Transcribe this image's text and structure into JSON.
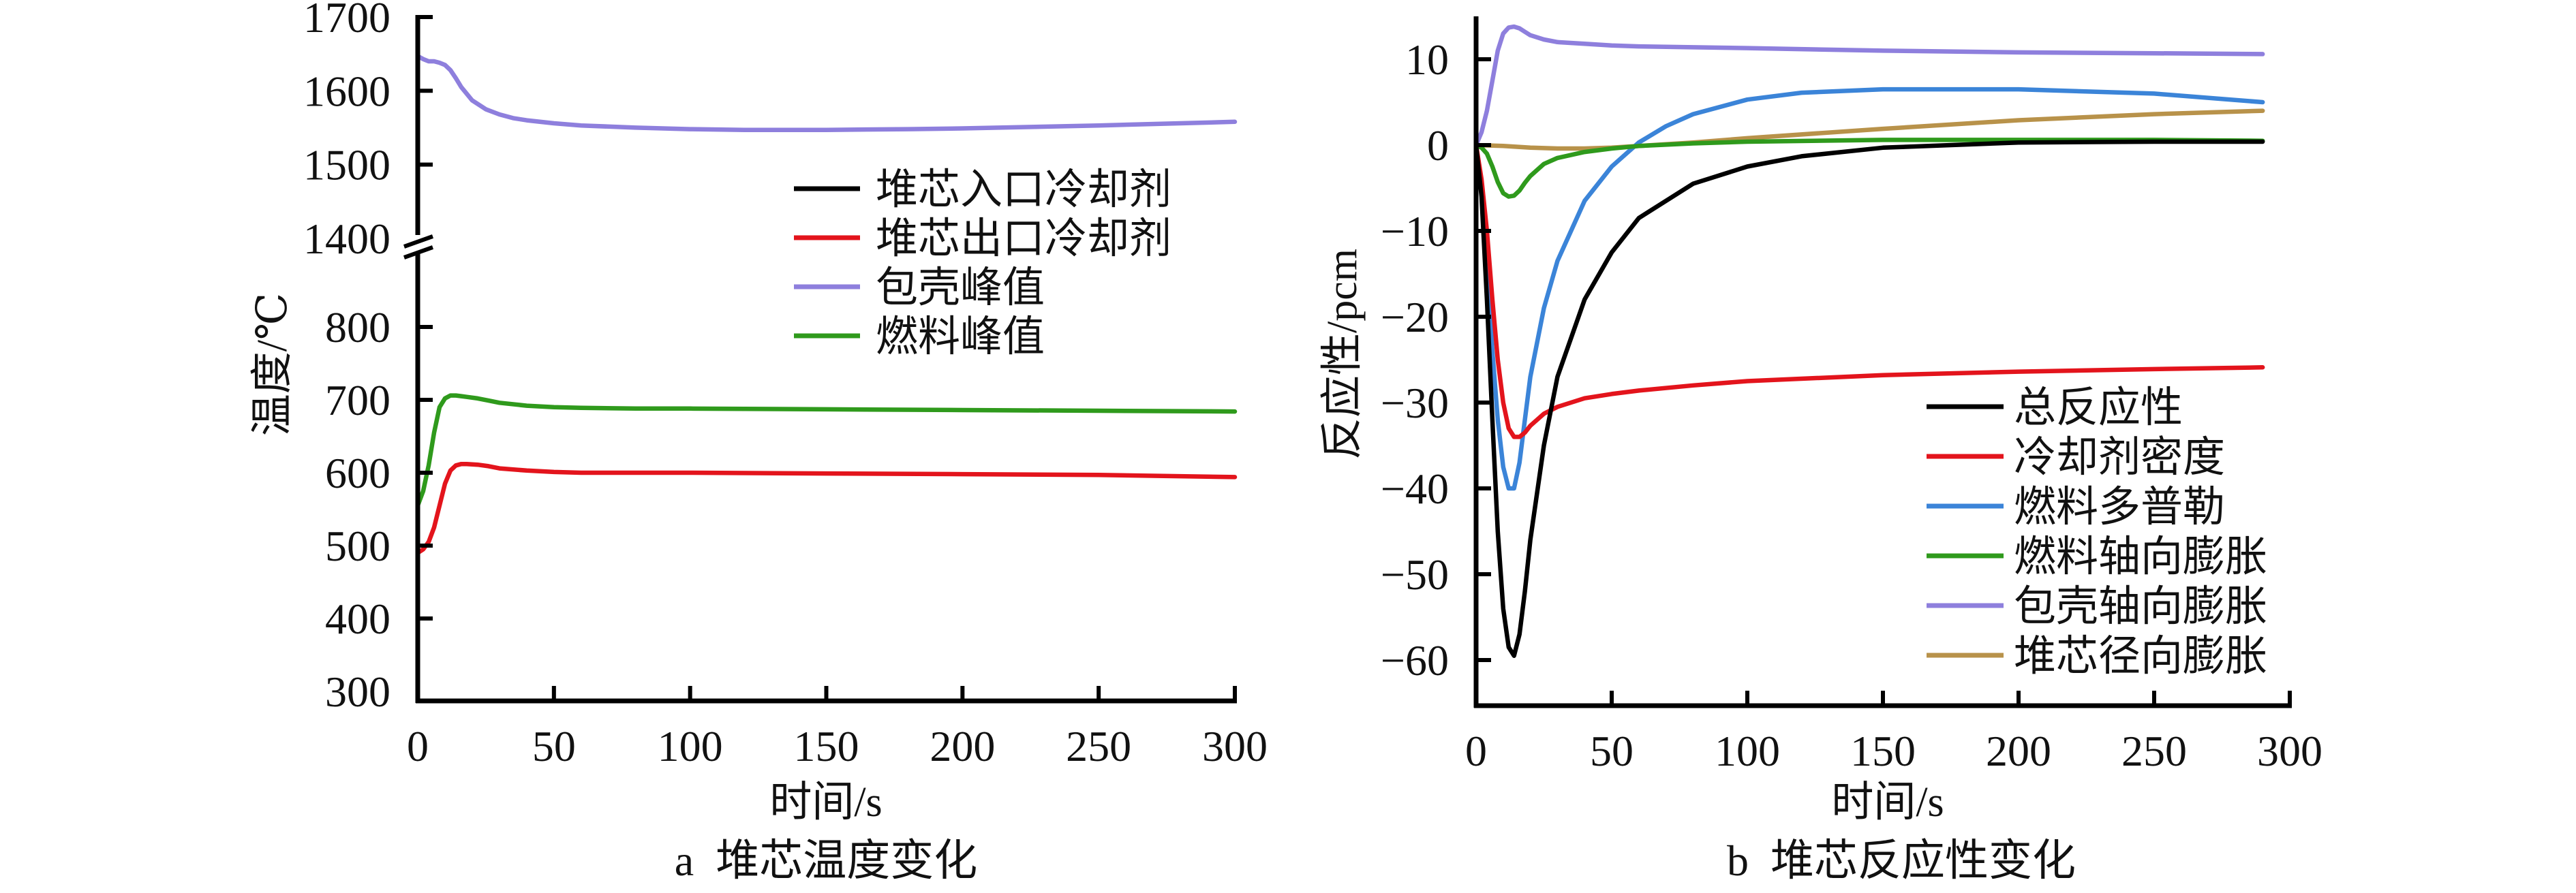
{
  "chart_data": [
    {
      "id": "a",
      "type": "line",
      "caption": "a  堆芯温度变化",
      "xlabel": "时间/s",
      "ylabel": "温度/℃",
      "xlim": [
        0,
        300
      ],
      "xticks": [
        0,
        50,
        100,
        150,
        200,
        250,
        300
      ],
      "ylim": [
        300,
        1700
      ],
      "ybreak": [
        900,
        1400
      ],
      "yticks": [
        300,
        400,
        500,
        600,
        700,
        800,
        1400,
        1500,
        1600,
        1700
      ],
      "legend_position": "center-right",
      "grid": false,
      "series": [
        {
          "name": "堆芯入口冷却剂",
          "color": "#000000",
          "x": [],
          "y": []
        },
        {
          "name": "堆芯出口冷却剂",
          "color": "#e3141c",
          "x": [
            0,
            2,
            4,
            6,
            8,
            10,
            12,
            14,
            16,
            18,
            22,
            26,
            30,
            40,
            50,
            60,
            80,
            100,
            150,
            200,
            250,
            300
          ],
          "y": [
            490,
            495,
            505,
            525,
            555,
            585,
            603,
            610,
            612,
            612,
            611,
            609,
            606,
            603,
            601,
            600,
            600,
            600,
            599,
            598,
            597,
            594
          ]
        },
        {
          "name": "包壳峰值",
          "color": "#8e7fdd",
          "x": [
            0,
            2,
            4,
            6,
            8,
            10,
            12,
            14,
            16,
            20,
            25,
            30,
            35,
            40,
            50,
            60,
            80,
            100,
            120,
            150,
            180,
            200,
            250,
            300
          ],
          "y": [
            1647,
            1643,
            1640,
            1640,
            1638,
            1635,
            1628,
            1617,
            1605,
            1587,
            1575,
            1568,
            1563,
            1560,
            1556,
            1553,
            1550,
            1548,
            1547,
            1547,
            1548,
            1549,
            1553,
            1558
          ]
        },
        {
          "name": "燃料峰值",
          "color": "#2f9a1c",
          "x": [
            0,
            2,
            4,
            6,
            8,
            10,
            12,
            14,
            16,
            18,
            22,
            26,
            30,
            40,
            50,
            60,
            80,
            100,
            150,
            200,
            250,
            300
          ],
          "y": [
            555,
            575,
            610,
            655,
            690,
            702,
            706,
            706,
            705,
            704,
            702,
            699,
            696,
            692,
            690,
            689,
            688,
            688,
            687,
            686,
            685,
            684
          ]
        }
      ]
    },
    {
      "id": "b",
      "type": "line",
      "caption": "b  堆芯反应性变化",
      "xlabel": "时间/s",
      "ylabel": "反应性/pcm",
      "xlim": [
        0,
        300
      ],
      "xticks": [
        0,
        50,
        100,
        150,
        200,
        250,
        300
      ],
      "ylim": [
        -65,
        15
      ],
      "yticks": [
        -60,
        -50,
        -40,
        -30,
        -20,
        -10,
        0,
        10
      ],
      "ytick_labels": [
        "−60",
        "−50",
        "−40",
        "−30",
        "−20",
        "−10",
        "0",
        "10"
      ],
      "legend_position": "bottom-right",
      "grid": false,
      "series": [
        {
          "name": "总反应性",
          "color": "#000000",
          "x": [
            0,
            2,
            4,
            6,
            8,
            10,
            12,
            14,
            16,
            18,
            20,
            25,
            30,
            40,
            50,
            60,
            80,
            100,
            120,
            150,
            200,
            250,
            290
          ],
          "y": [
            0,
            -6,
            -18,
            -32,
            -45,
            -54,
            -58.5,
            -59.5,
            -57,
            -52,
            -46,
            -35,
            -27,
            -18,
            -12.5,
            -8.5,
            -4.5,
            -2.5,
            -1.3,
            -0.3,
            0.3,
            0.4,
            0.4
          ]
        },
        {
          "name": "冷却剂密度",
          "color": "#e3141c",
          "x": [
            0,
            2,
            4,
            6,
            8,
            10,
            12,
            14,
            16,
            18,
            20,
            25,
            30,
            40,
            50,
            60,
            80,
            100,
            150,
            200,
            250,
            290
          ],
          "y": [
            0,
            -4,
            -10,
            -18,
            -25,
            -30,
            -33,
            -34,
            -34,
            -33.5,
            -32.7,
            -31.3,
            -30.5,
            -29.5,
            -29,
            -28.6,
            -28,
            -27.5,
            -26.8,
            -26.4,
            -26.1,
            -25.9
          ]
        },
        {
          "name": "燃料多普勒",
          "color": "#3b84d8",
          "x": [
            0,
            2,
            4,
            6,
            8,
            10,
            12,
            14,
            16,
            18,
            20,
            25,
            30,
            40,
            50,
            60,
            70,
            80,
            100,
            120,
            150,
            200,
            250,
            290
          ],
          "y": [
            0,
            -5,
            -14,
            -24,
            -32,
            -37.5,
            -40,
            -40,
            -37,
            -32,
            -27,
            -19,
            -13.5,
            -6.5,
            -2.5,
            0.3,
            2.2,
            3.6,
            5.3,
            6.1,
            6.5,
            6.5,
            6.0,
            5.0
          ]
        },
        {
          "name": "燃料轴向膨胀",
          "color": "#2f9a1c",
          "x": [
            0,
            2,
            4,
            6,
            8,
            10,
            12,
            14,
            16,
            18,
            20,
            25,
            30,
            40,
            50,
            60,
            80,
            100,
            150,
            200,
            250,
            290
          ],
          "y": [
            0,
            -0.3,
            -1,
            -2.5,
            -4.3,
            -5.6,
            -6,
            -5.9,
            -5.3,
            -4.4,
            -3.6,
            -2.2,
            -1.5,
            -0.8,
            -0.4,
            -0.1,
            0.2,
            0.4,
            0.6,
            0.6,
            0.6,
            0.5
          ]
        },
        {
          "name": "包壳轴向膨胀",
          "color": "#8e7fdd",
          "x": [
            0,
            2,
            4,
            6,
            8,
            10,
            12,
            14,
            16,
            18,
            20,
            25,
            30,
            40,
            50,
            60,
            80,
            100,
            150,
            200,
            250,
            290
          ],
          "y": [
            0,
            1.5,
            4,
            7.5,
            11,
            13,
            13.7,
            13.8,
            13.6,
            13.2,
            12.8,
            12.3,
            12.0,
            11.8,
            11.6,
            11.5,
            11.4,
            11.3,
            11.0,
            10.8,
            10.7,
            10.6
          ]
        },
        {
          "name": "堆芯径向膨胀",
          "color": "#b8924a",
          "x": [
            0,
            10,
            20,
            30,
            40,
            50,
            60,
            70,
            80,
            100,
            150,
            200,
            250,
            290
          ],
          "y": [
            0,
            -0.1,
            -0.3,
            -0.4,
            -0.4,
            -0.3,
            -0.1,
            0.1,
            0.3,
            0.8,
            1.9,
            2.9,
            3.6,
            4.0
          ]
        }
      ]
    }
  ]
}
